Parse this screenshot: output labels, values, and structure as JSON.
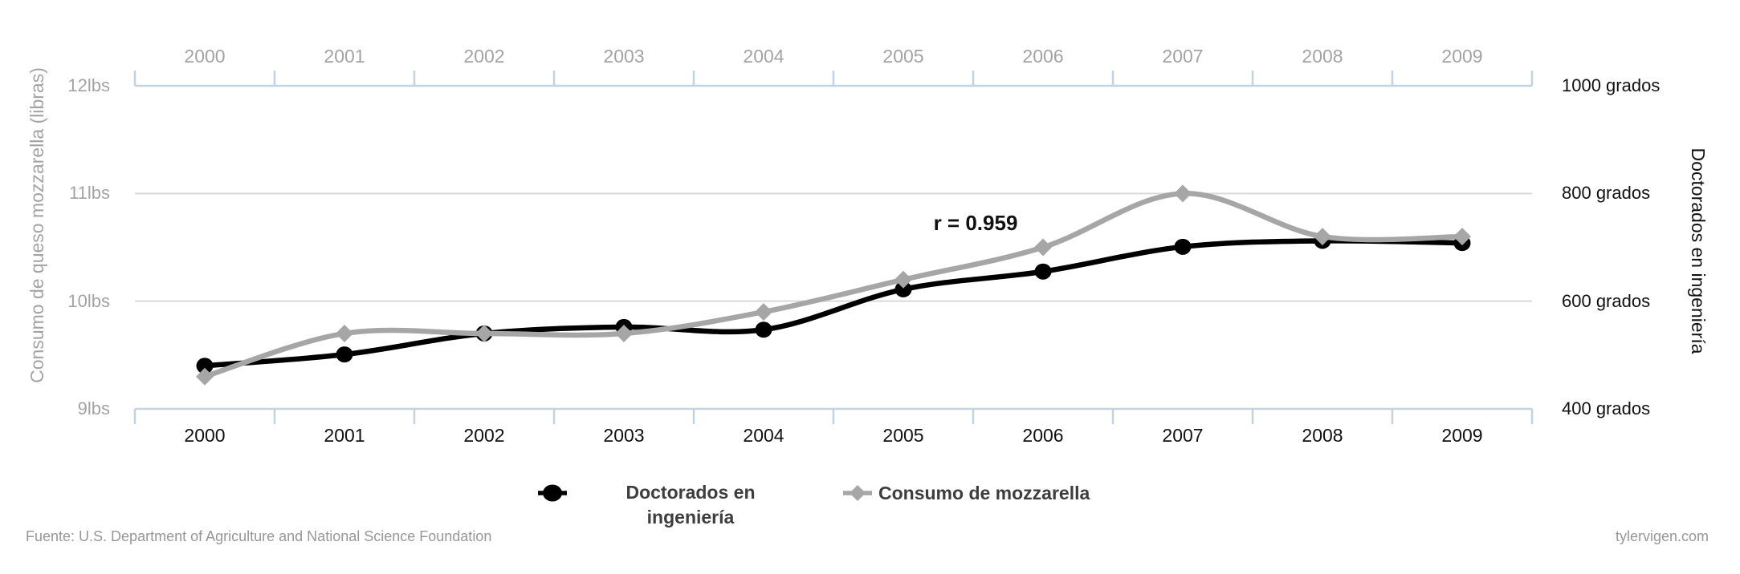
{
  "chart_data": {
    "type": "line",
    "title": "",
    "x": [
      "2000",
      "2001",
      "2002",
      "2003",
      "2004",
      "2005",
      "2006",
      "2007",
      "2008",
      "2009"
    ],
    "series": [
      {
        "name": "Doctorados en ingeniería",
        "axis": "right",
        "color": "#000000",
        "marker": "circle",
        "values": [
          480,
          501,
          540,
          552,
          547,
          622,
          655,
          701,
          712,
          708
        ]
      },
      {
        "name": "Consumo de mozzarella",
        "axis": "left",
        "color": "#a6a6a6",
        "marker": "diamond",
        "values": [
          9.3,
          9.7,
          9.7,
          9.7,
          9.9,
          10.2,
          10.5,
          11,
          10.6,
          10.6
        ]
      }
    ],
    "left_axis": {
      "label": "Consumo de queso mozzarella (libras)",
      "range": [
        9,
        12
      ],
      "tick_labels": [
        "12lbs",
        "11lbs",
        "10lbs",
        "9lbs"
      ],
      "tick_values": [
        12,
        11,
        10,
        9
      ],
      "gridline_values": [
        11,
        10
      ]
    },
    "right_axis": {
      "label": "Doctorados en ingeniería",
      "range": [
        400,
        1000
      ],
      "tick_labels": [
        "1000 grados",
        "800 grados",
        "600 grados",
        "400 grados"
      ],
      "tick_values": [
        1000,
        800,
        600,
        400
      ]
    },
    "annotation": "r = 0.959",
    "grid": "horizontal",
    "legend_position": "bottom",
    "legend": [
      {
        "label": "Doctorados en\ningeniería",
        "marker": "circle",
        "color": "#000000"
      },
      {
        "label": "Consumo de mozzarella",
        "marker": "diamond",
        "color": "#a6a6a6"
      }
    ]
  },
  "footer": {
    "source": "Fuente: U.S. Department of Agriculture and National Science Foundation",
    "site": "tylervigen.com"
  },
  "colors": {
    "axis_line": "#c2d3e4",
    "gridline": "#d9d9d9",
    "top_year_label": "#a3a3a3",
    "bottom_year_label": "#111111",
    "left_tick_label": "#a3a3a3",
    "right_tick_label": "#111111",
    "series_doctorates": "#000000",
    "series_mozzarella": "#a6a6a6",
    "legend_text": "#3d3d3d",
    "footer_text": "#979797",
    "annotation_text": "#111111"
  }
}
